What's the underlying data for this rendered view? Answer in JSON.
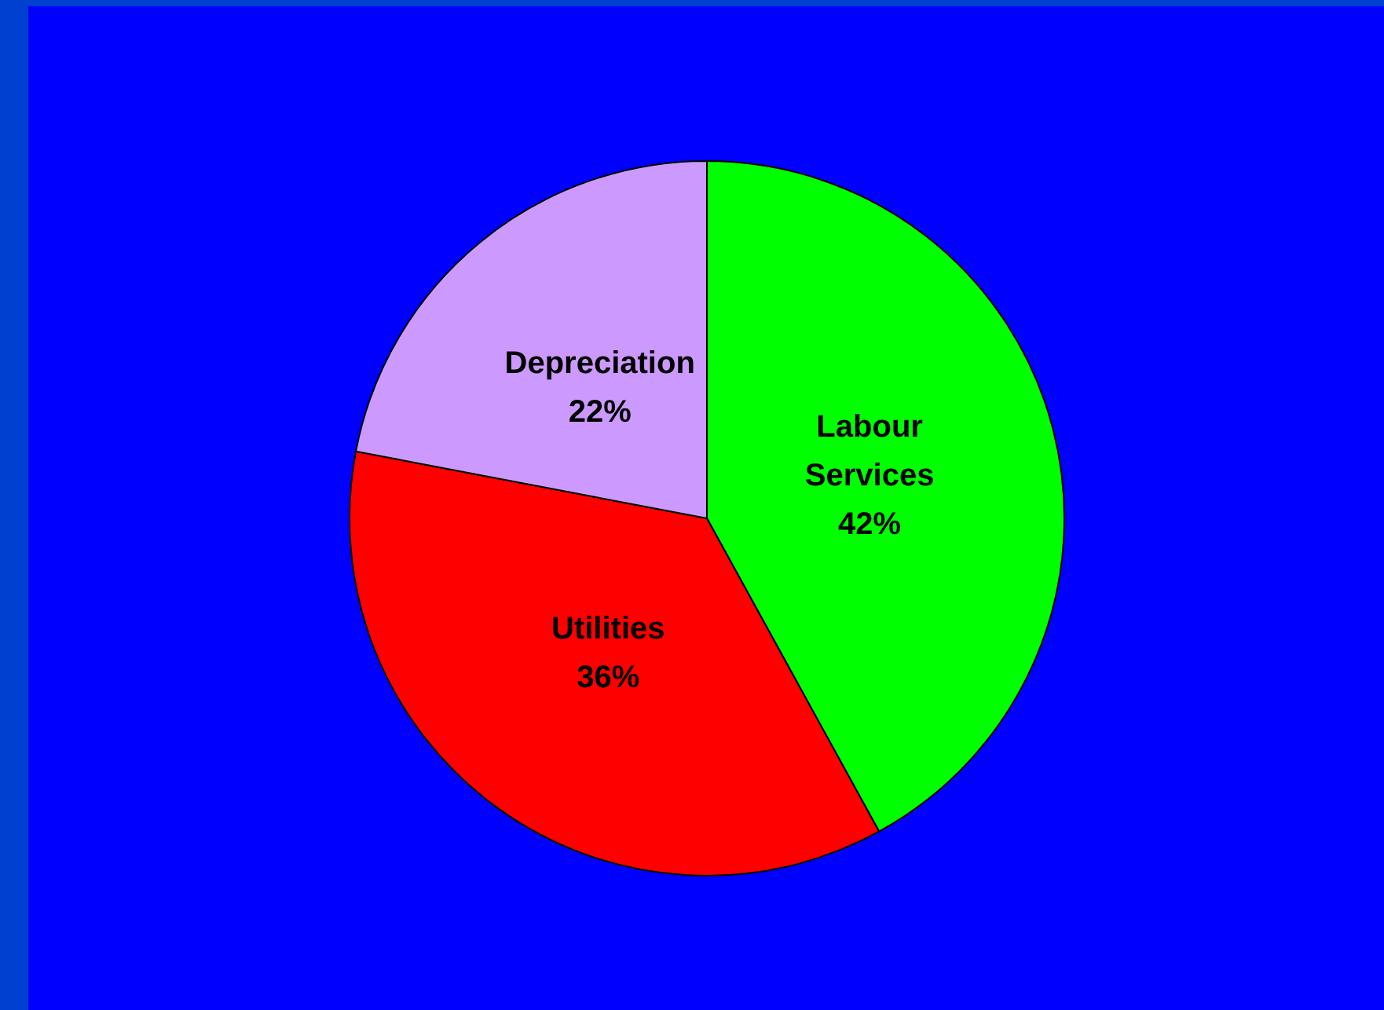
{
  "chart_data": {
    "type": "pie",
    "categories": [
      "Labour Services",
      "Utilities",
      "Depreciation"
    ],
    "values": [
      42,
      36,
      22
    ],
    "colors": [
      "#00ff00",
      "#ff0000",
      "#cc99ff"
    ],
    "value_labels": [
      "42%",
      "36%",
      "22%"
    ]
  }
}
